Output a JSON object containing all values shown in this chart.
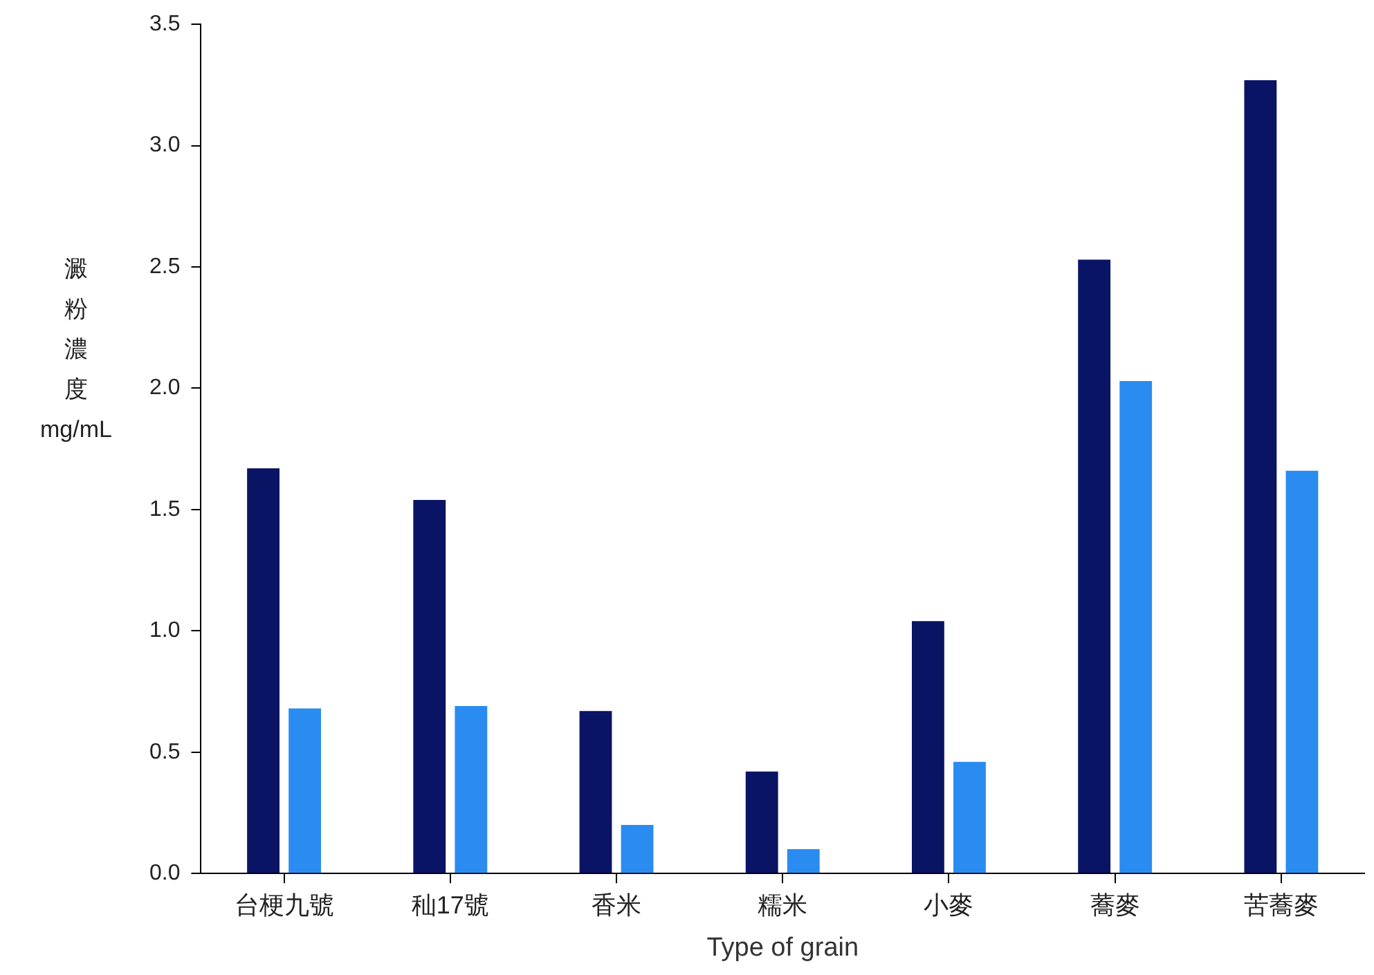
{
  "chart_data": {
    "type": "bar",
    "xlabel": "Type of grain",
    "ylabel": "澱粉濃度 mg/mL",
    "categories": [
      "台梗九號",
      "秈17號",
      "香米",
      "糯米",
      "小麥",
      "蕎麥",
      "苦蕎麥"
    ],
    "series": [
      {
        "color": "#0a1464",
        "values": [
          1.67,
          1.54,
          0.67,
          0.42,
          1.04,
          2.53,
          3.27
        ]
      },
      {
        "color": "#2a8cf0",
        "values": [
          0.68,
          0.69,
          0.2,
          0.1,
          0.46,
          2.03,
          1.66
        ]
      }
    ],
    "ylim": [
      0,
      3.5
    ],
    "yticks": [
      {
        "value": 0,
        "label": "0.0"
      },
      {
        "value": 0.5,
        "label": "0.5"
      },
      {
        "value": 1,
        "label": "1.0"
      },
      {
        "value": 1.5,
        "label": "1.5"
      },
      {
        "value": 2,
        "label": "2.0"
      },
      {
        "value": 2.5,
        "label": "2.5"
      },
      {
        "value": 3,
        "label": "3.0"
      },
      {
        "value": 3.5,
        "label": "3.5"
      }
    ],
    "grid": false,
    "legend": false
  }
}
